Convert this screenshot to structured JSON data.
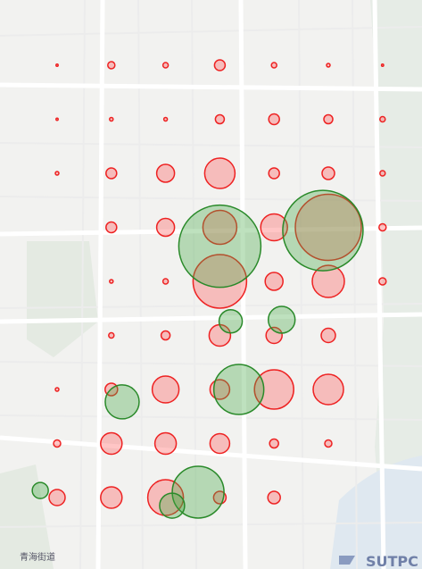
{
  "map": {
    "place_label": "青海街道",
    "logo": "SUTPC",
    "layers": [
      {
        "name": "red",
        "fill": "rgba(255,90,90,0.35)",
        "stroke": "#ee2222"
      },
      {
        "name": "green",
        "fill": "rgba(70,170,70,0.35)",
        "stroke": "#2a8a2a"
      }
    ],
    "bubbles": [
      {
        "layer": 0,
        "col": 0,
        "row": 0,
        "size": 1
      },
      {
        "layer": 0,
        "col": 1,
        "row": 0,
        "size": 4
      },
      {
        "layer": 0,
        "col": 2,
        "row": 0,
        "size": 3
      },
      {
        "layer": 0,
        "col": 3,
        "row": 0,
        "size": 6
      },
      {
        "layer": 0,
        "col": 4,
        "row": 0,
        "size": 3
      },
      {
        "layer": 0,
        "col": 5,
        "row": 0,
        "size": 2
      },
      {
        "layer": 0,
        "col": 6,
        "row": 0,
        "size": 1
      },
      {
        "layer": 0,
        "col": 0,
        "row": 1,
        "size": 1
      },
      {
        "layer": 0,
        "col": 1,
        "row": 1,
        "size": 2
      },
      {
        "layer": 0,
        "col": 2,
        "row": 1,
        "size": 2
      },
      {
        "layer": 0,
        "col": 3,
        "row": 1,
        "size": 5
      },
      {
        "layer": 0,
        "col": 4,
        "row": 1,
        "size": 6
      },
      {
        "layer": 0,
        "col": 5,
        "row": 1,
        "size": 5
      },
      {
        "layer": 0,
        "col": 6,
        "row": 1,
        "size": 3
      },
      {
        "layer": 0,
        "col": 0,
        "row": 2,
        "size": 2
      },
      {
        "layer": 0,
        "col": 1,
        "row": 2,
        "size": 6
      },
      {
        "layer": 0,
        "col": 2,
        "row": 2,
        "size": 10
      },
      {
        "layer": 0,
        "col": 3,
        "row": 2,
        "size": 17
      },
      {
        "layer": 0,
        "col": 4,
        "row": 2,
        "size": 6
      },
      {
        "layer": 0,
        "col": 5,
        "row": 2,
        "size": 7
      },
      {
        "layer": 0,
        "col": 6,
        "row": 2,
        "size": 3
      },
      {
        "layer": 0,
        "col": 1,
        "row": 3,
        "size": 6
      },
      {
        "layer": 0,
        "col": 2,
        "row": 3,
        "size": 10
      },
      {
        "layer": 0,
        "col": 3,
        "row": 3,
        "size": 19
      },
      {
        "layer": 0,
        "col": 4,
        "row": 3,
        "size": 15
      },
      {
        "layer": 0,
        "col": 5,
        "row": 3,
        "size": 37
      },
      {
        "layer": 0,
        "col": 6,
        "row": 3,
        "size": 4
      },
      {
        "layer": 0,
        "col": 1,
        "row": 4,
        "size": 2
      },
      {
        "layer": 0,
        "col": 2,
        "row": 4,
        "size": 3
      },
      {
        "layer": 0,
        "col": 3,
        "row": 4,
        "size": 30
      },
      {
        "layer": 0,
        "col": 4,
        "row": 4,
        "size": 10
      },
      {
        "layer": 0,
        "col": 5,
        "row": 4,
        "size": 18
      },
      {
        "layer": 0,
        "col": 6,
        "row": 4,
        "size": 4
      },
      {
        "layer": 0,
        "col": 1,
        "row": 5,
        "size": 3
      },
      {
        "layer": 0,
        "col": 2,
        "row": 5,
        "size": 5
      },
      {
        "layer": 0,
        "col": 3,
        "row": 5,
        "size": 12
      },
      {
        "layer": 0,
        "col": 4,
        "row": 5,
        "size": 9
      },
      {
        "layer": 0,
        "col": 5,
        "row": 5,
        "size": 8
      },
      {
        "layer": 0,
        "col": 0,
        "row": 6,
        "size": 2
      },
      {
        "layer": 0,
        "col": 1,
        "row": 6,
        "size": 7
      },
      {
        "layer": 0,
        "col": 2,
        "row": 6,
        "size": 15
      },
      {
        "layer": 0,
        "col": 3,
        "row": 6,
        "size": 11
      },
      {
        "layer": 0,
        "col": 4,
        "row": 6,
        "size": 22
      },
      {
        "layer": 0,
        "col": 5,
        "row": 6,
        "size": 17
      },
      {
        "layer": 0,
        "col": 0,
        "row": 7,
        "size": 4
      },
      {
        "layer": 0,
        "col": 1,
        "row": 7,
        "size": 12
      },
      {
        "layer": 0,
        "col": 2,
        "row": 7,
        "size": 12
      },
      {
        "layer": 0,
        "col": 3,
        "row": 7,
        "size": 11
      },
      {
        "layer": 0,
        "col": 4,
        "row": 7,
        "size": 5
      },
      {
        "layer": 0,
        "col": 5,
        "row": 7,
        "size": 4
      },
      {
        "layer": 0,
        "col": 0,
        "row": 8,
        "size": 9
      },
      {
        "layer": 0,
        "col": 1,
        "row": 8,
        "size": 12
      },
      {
        "layer": 0,
        "col": 2,
        "row": 8,
        "size": 20
      },
      {
        "layer": 0,
        "col": 3,
        "row": 8,
        "size": 7
      },
      {
        "layer": 0,
        "col": 4,
        "row": 8,
        "size": 7
      },
      {
        "layer": 1,
        "col": 3.0,
        "row": 3.35,
        "size": 46
      },
      {
        "layer": 1,
        "col": 4.9,
        "row": 3.06,
        "size": 45
      },
      {
        "layer": 1,
        "col": 3.2,
        "row": 4.74,
        "size": 13
      },
      {
        "layer": 1,
        "col": 4.14,
        "row": 4.71,
        "size": 15
      },
      {
        "layer": 1,
        "col": 1.2,
        "row": 6.23,
        "size": 19
      },
      {
        "layer": 1,
        "col": 3.35,
        "row": 6.0,
        "size": 28
      },
      {
        "layer": 1,
        "col": 2.6,
        "row": 7.9,
        "size": 29
      },
      {
        "layer": 1,
        "col": 2.12,
        "row": 8.15,
        "size": 14
      },
      {
        "layer": 1,
        "col": -0.31,
        "row": 7.87,
        "size": 9
      }
    ]
  }
}
